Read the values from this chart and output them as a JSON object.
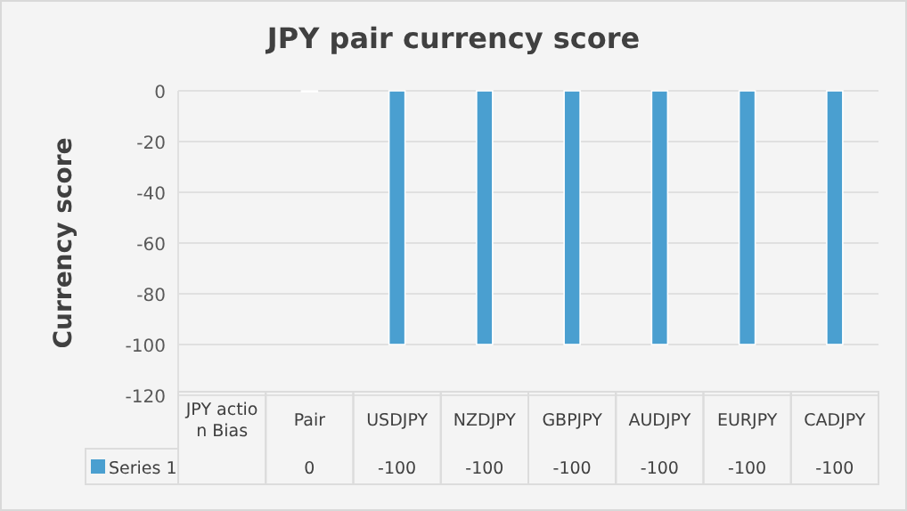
{
  "chart_data": {
    "type": "bar",
    "title": "JPY pair currency score",
    "ylabel": "Currency score",
    "categories": [
      "JPY action Bias",
      "Pair",
      "USDJPY",
      "NZDJPY",
      "GBPJPY",
      "AUDJPY",
      "EURJPY",
      "CADJPY"
    ],
    "series": [
      {
        "name": "Series 1",
        "color": "#4a9fd0",
        "values": [
          null,
          0,
          -100,
          -100,
          -100,
          -100,
          -100,
          -100
        ]
      }
    ],
    "ylim": [
      -120,
      0
    ],
    "yticks": [
      0,
      -20,
      -40,
      -60,
      -80,
      -100,
      -120
    ],
    "grid": "y",
    "data_labels": true,
    "legend": "bottom"
  }
}
